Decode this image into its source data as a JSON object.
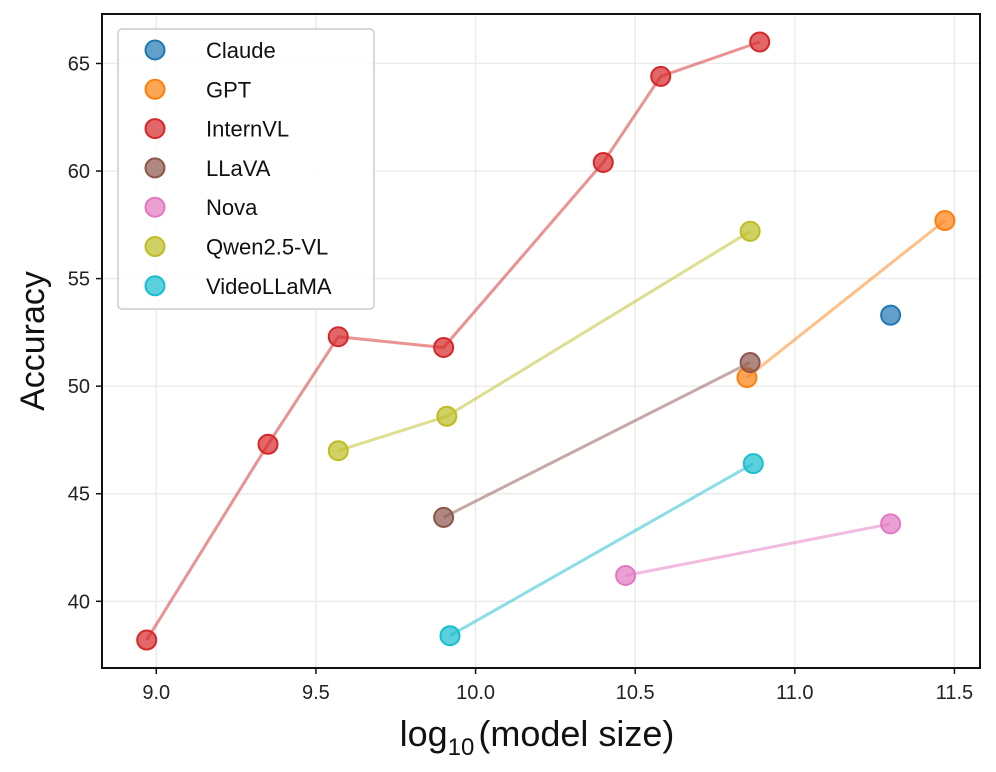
{
  "chart_data": {
    "type": "scatter",
    "title": "",
    "xlabel": "log",
    "xlabel_subscript": "10",
    "xlabel_suffix": "(model size)",
    "ylabel": "Accuracy",
    "xlim": [
      8.83,
      11.58
    ],
    "ylim": [
      36.9,
      67.3
    ],
    "xticks": [
      9.0,
      9.5,
      10.0,
      10.5,
      11.0,
      11.5
    ],
    "xtick_labels": [
      "9.0",
      "9.5",
      "10.0",
      "10.5",
      "11.0",
      "11.5"
    ],
    "yticks": [
      40,
      45,
      50,
      55,
      60,
      65
    ],
    "ytick_labels": [
      "40",
      "45",
      "50",
      "55",
      "60",
      "65"
    ],
    "grid": true,
    "legend_position": "top-left",
    "series": [
      {
        "name": "Claude",
        "color": "#1f77b4",
        "connected": false,
        "x": [
          11.3
        ],
        "y": [
          53.3
        ]
      },
      {
        "name": "GPT",
        "color": "#ff7f0e",
        "connected": true,
        "x": [
          10.85,
          11.47
        ],
        "y": [
          50.4,
          57.7
        ]
      },
      {
        "name": "InternVL",
        "color": "#d62728",
        "connected": true,
        "x": [
          8.97,
          9.35,
          9.57,
          9.9,
          10.4,
          10.58,
          10.89
        ],
        "y": [
          38.2,
          47.3,
          52.3,
          51.8,
          60.4,
          64.4,
          66.0
        ]
      },
      {
        "name": "LLaVA",
        "color": "#8c564b",
        "connected": true,
        "x": [
          9.9,
          10.86
        ],
        "y": [
          43.9,
          51.1
        ]
      },
      {
        "name": "Nova",
        "color": "#e377c2",
        "connected": true,
        "x": [
          10.47,
          11.3
        ],
        "y": [
          41.2,
          43.6
        ]
      },
      {
        "name": "Qwen2.5-VL",
        "color": "#bcbd22",
        "connected": true,
        "x": [
          9.57,
          9.91,
          10.86
        ],
        "y": [
          47.0,
          48.6,
          57.2
        ]
      },
      {
        "name": "VideoLLaMA",
        "color": "#17becf",
        "connected": true,
        "x": [
          9.92,
          10.87
        ],
        "y": [
          38.4,
          46.4
        ]
      }
    ]
  }
}
